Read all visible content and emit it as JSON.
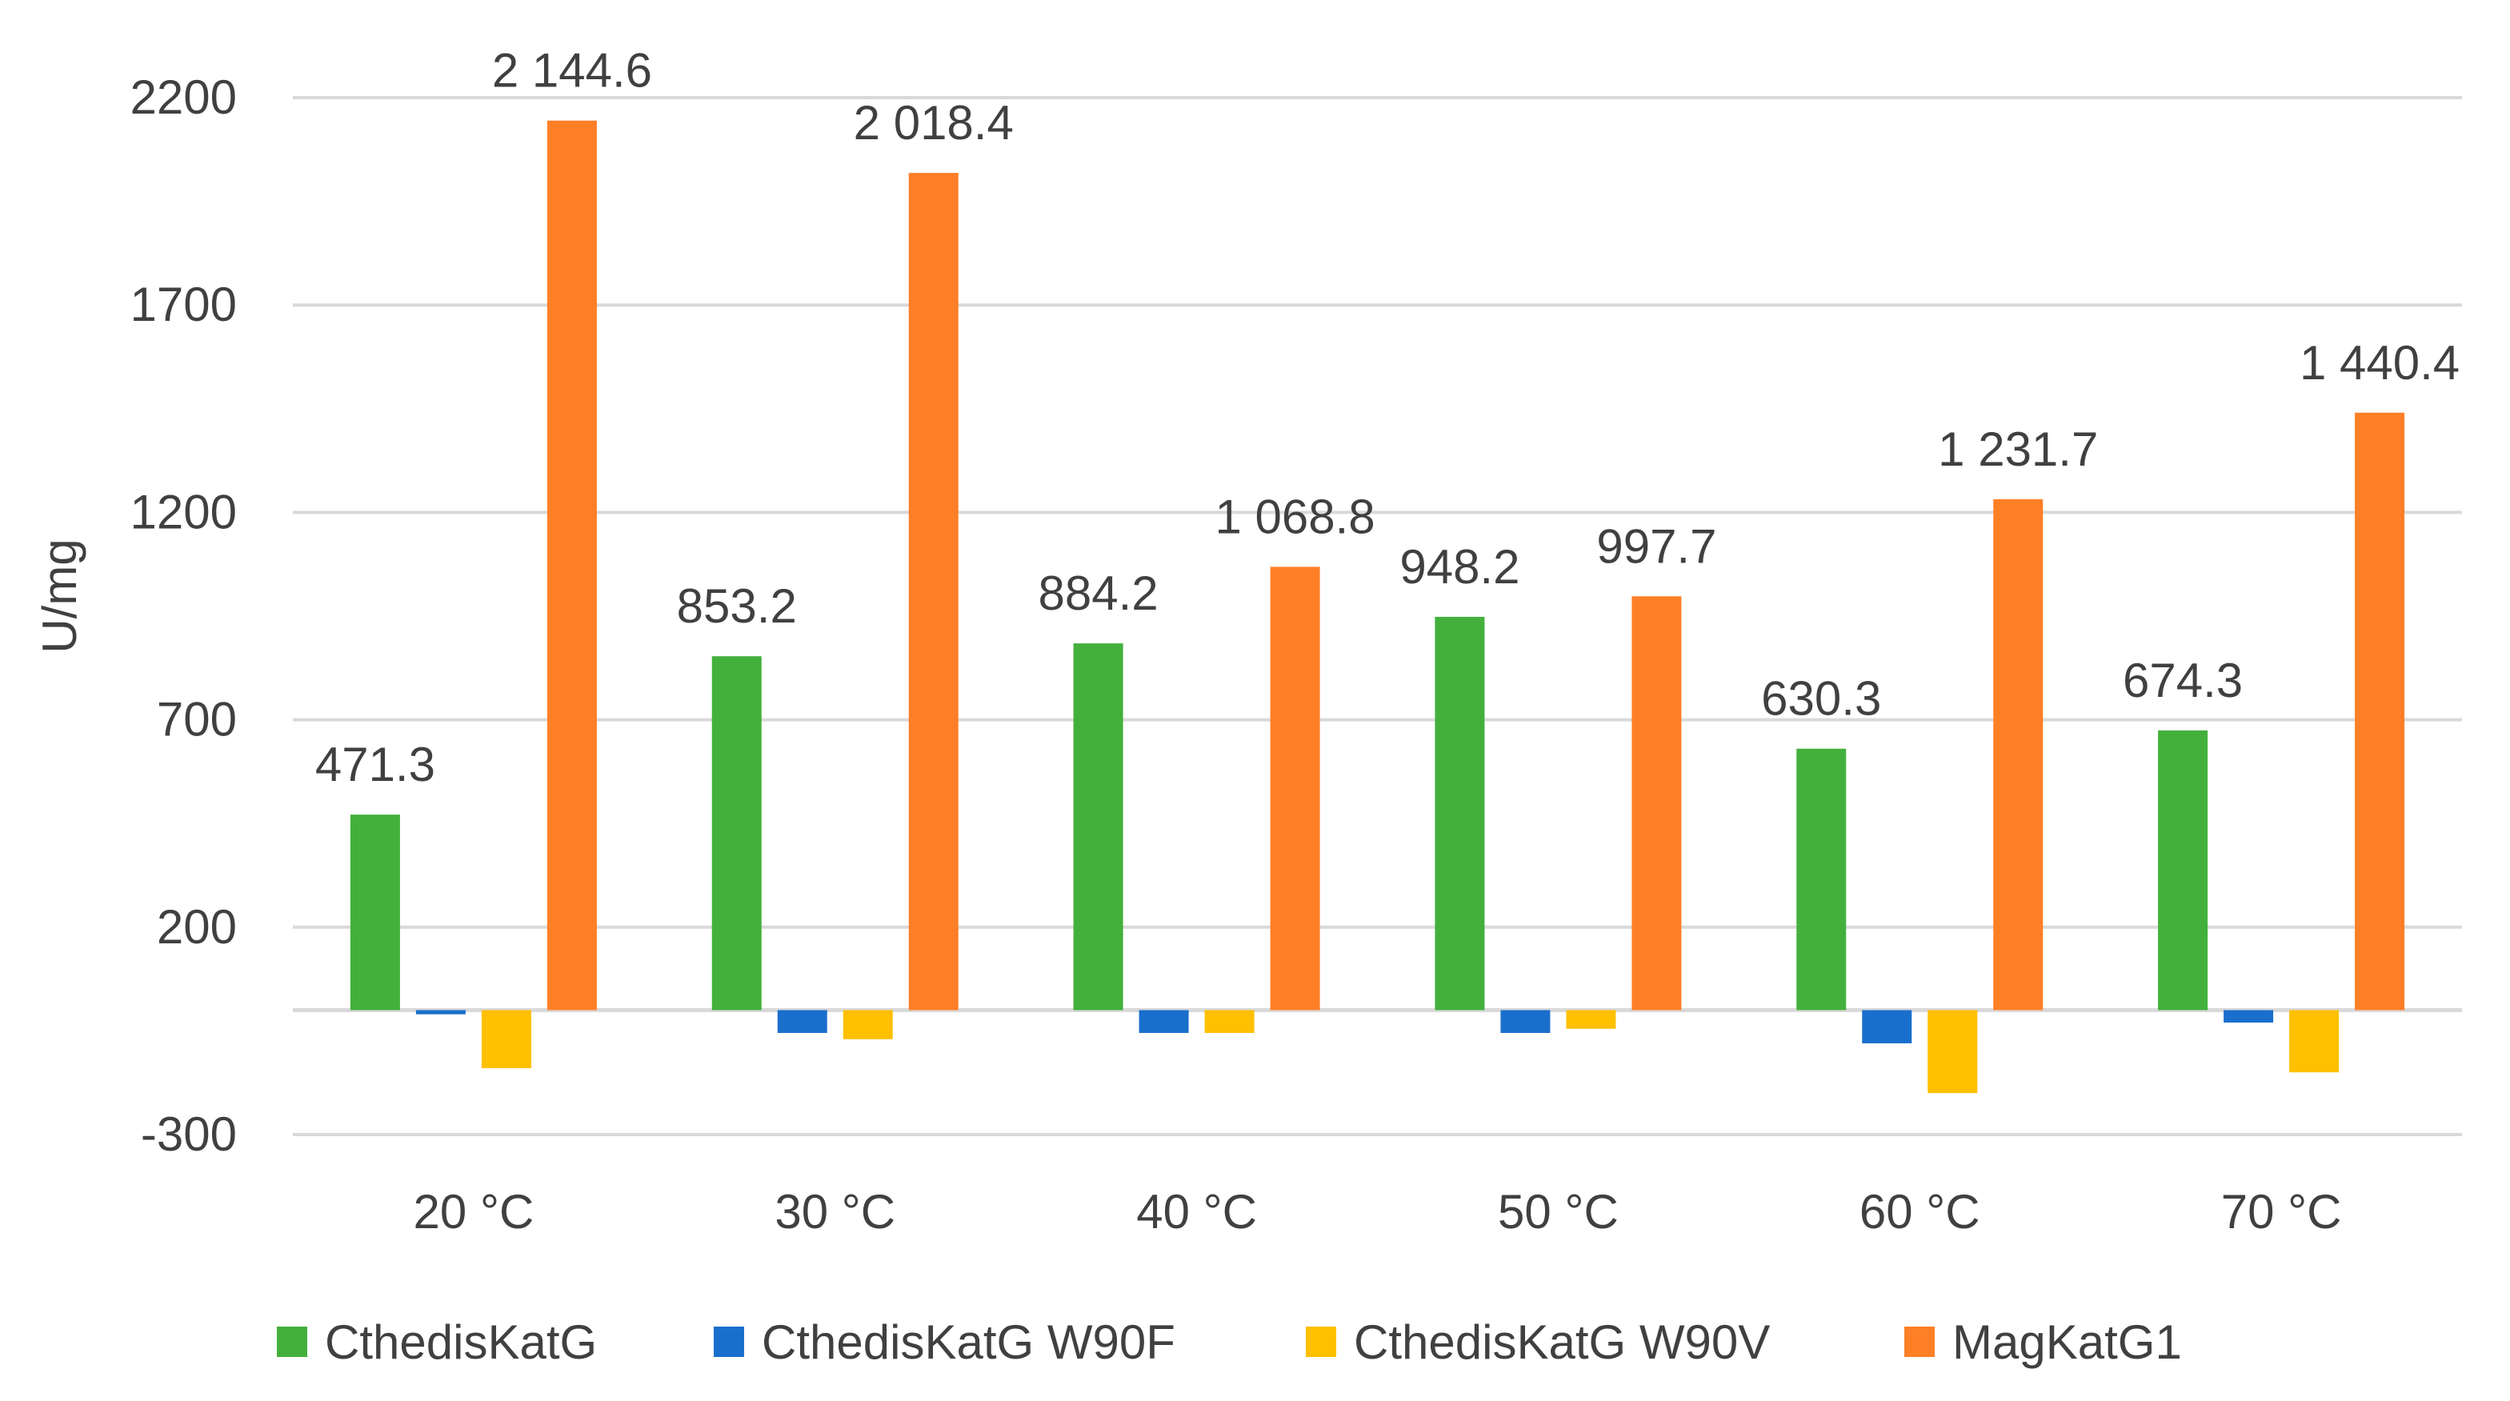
{
  "chart_data": {
    "type": "bar",
    "title": "",
    "xlabel": "",
    "ylabel": "U/mg",
    "ylim": [
      -300,
      2200
    ],
    "yticks": [
      -300,
      200,
      700,
      1200,
      1700,
      2200
    ],
    "grid": true,
    "legend_position": "bottom",
    "categories": [
      "20 °C",
      "30 °C",
      "40 °C",
      "50 °C",
      "60 °C",
      "70 °C"
    ],
    "series": [
      {
        "name": "CthedisKatG",
        "color": "#43b03c",
        "labeled": true,
        "values": [
          471.3,
          853.2,
          884.2,
          948.2,
          630.3,
          674.3
        ],
        "labels": [
          "471.3",
          "853.2",
          "884.2",
          "948.2",
          "630.3",
          "674.3"
        ]
      },
      {
        "name": "CthedisKatG W90F",
        "color": "#1a6fcc",
        "labeled": false,
        "values": [
          -10,
          -55,
          -55,
          -55,
          -80,
          -30
        ],
        "labels": []
      },
      {
        "name": "CthedisKatG W90V",
        "color": "#ffc000",
        "labeled": false,
        "values": [
          -140,
          -70,
          -55,
          -45,
          -200,
          -150
        ],
        "labels": []
      },
      {
        "name": "MagKatG1",
        "color": "#ff7f27",
        "labeled": true,
        "values": [
          2144.6,
          2018.4,
          1068.8,
          997.7,
          1231.7,
          1440.4
        ],
        "labels": [
          "2 144.6",
          "2 018.4",
          "1 068.8",
          "997.7",
          "1 231.7",
          "1 440.4"
        ]
      }
    ]
  }
}
